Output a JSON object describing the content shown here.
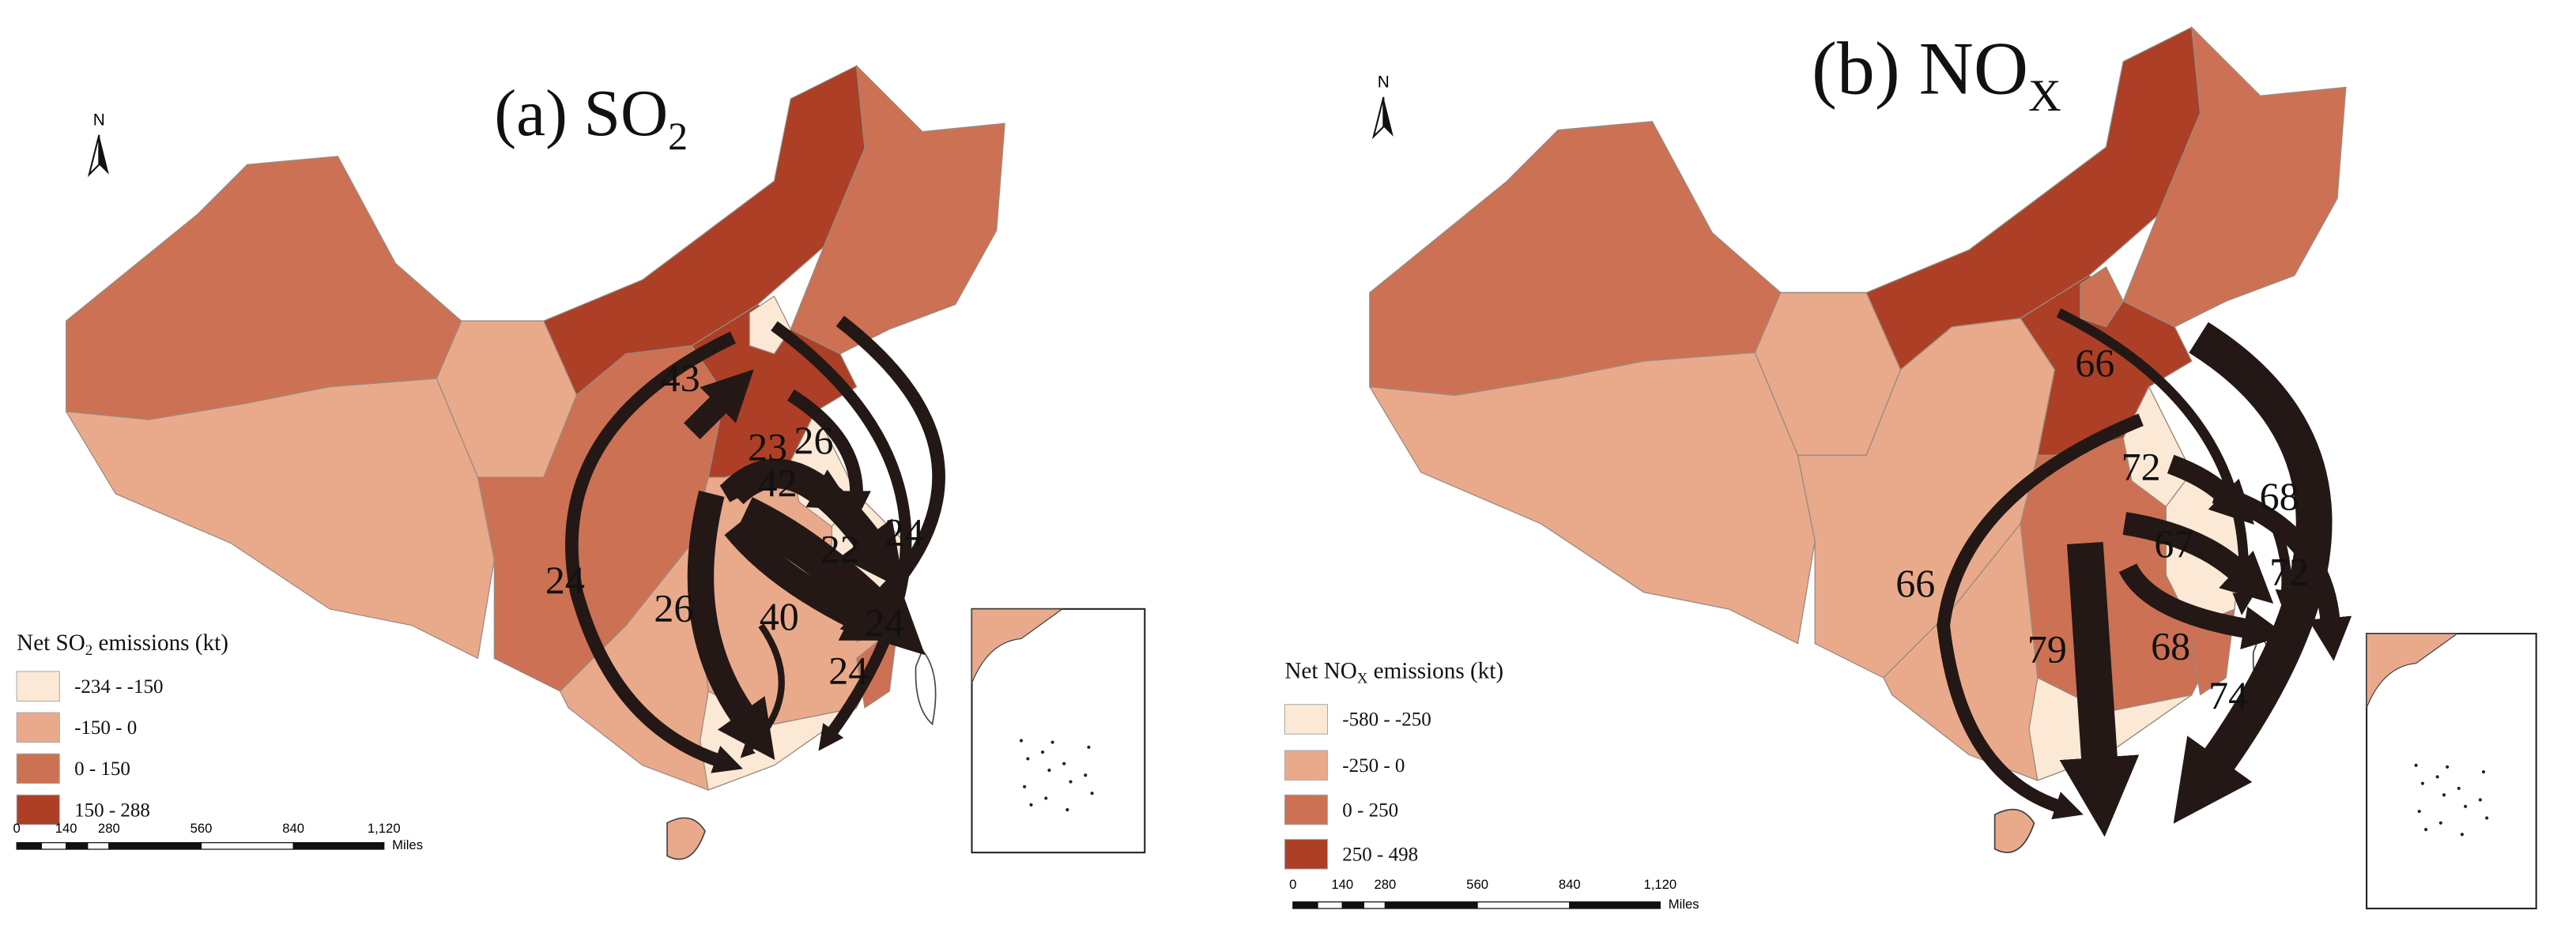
{
  "panels": [
    {
      "title": {
        "main": "(a) SO",
        "sub": "2"
      },
      "north": "N",
      "legend": {
        "title": {
          "main": "Net SO",
          "sub": "2",
          "rest": " emissions (kt)"
        },
        "classes": [
          {
            "label": "-234 - -150",
            "color": "#fbe9d6"
          },
          {
            "label": "-150 - 0",
            "color": "#e9aa8b"
          },
          {
            "label": "0 - 150",
            "color": "#cc7154"
          },
          {
            "label": "150 - 288",
            "color": "#ac3f26"
          }
        ]
      },
      "scale_bar": {
        "ticks": [
          "0",
          "140",
          "280",
          "560",
          "840",
          "1,120"
        ],
        "unit": "Miles"
      },
      "flows": [
        43,
        23,
        26,
        42,
        22,
        24,
        24,
        26,
        40,
        24,
        24
      ]
    },
    {
      "title": {
        "main": "(b) NO",
        "sub": "X"
      },
      "north": "N",
      "legend": {
        "title": {
          "main": "Net NO",
          "sub": "X",
          "rest": " emissions (kt)"
        },
        "classes": [
          {
            "label": "-580 - -250",
            "color": "#fbe9d6"
          },
          {
            "label": "-250 - 0",
            "color": "#e9aa8b"
          },
          {
            "label": "0 - 250",
            "color": "#cc7154"
          },
          {
            "label": "250 - 498",
            "color": "#ac3f26"
          }
        ]
      },
      "scale_bar": {
        "ticks": [
          "0",
          "140",
          "280",
          "560",
          "840",
          "1,120"
        ],
        "unit": "Miles"
      },
      "flows": [
        66,
        72,
        68,
        67,
        72,
        66,
        79,
        68,
        74
      ]
    }
  ]
}
